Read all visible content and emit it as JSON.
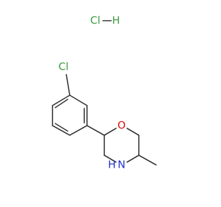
{
  "salt": {
    "atoms": [
      "Cl",
      "H"
    ]
  },
  "molecule": {
    "atoms": [
      {
        "label": "Cl"
      },
      {
        "label": "O"
      },
      {
        "label": "N"
      },
      {
        "label": "H"
      }
    ]
  }
}
